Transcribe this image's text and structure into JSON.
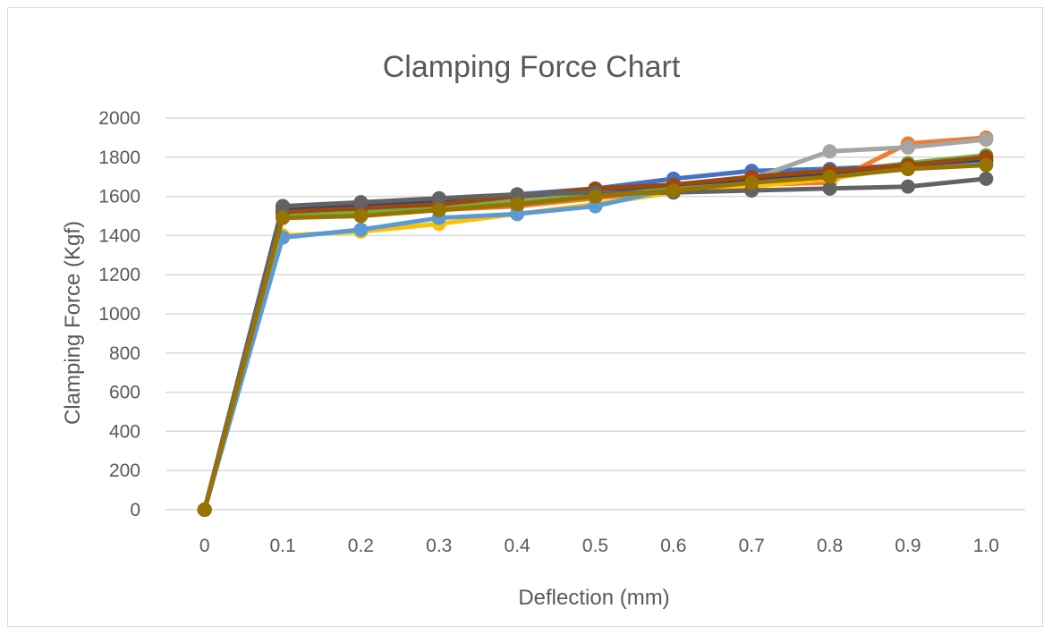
{
  "chart_data": {
    "type": "line",
    "title": "Clamping Force Chart",
    "xlabel": "Deflection (mm)",
    "ylabel": "Clamping Force (Kgf)",
    "x": [
      "0",
      "0.1",
      "0.2",
      "0.3",
      "0.4",
      "0.5",
      "0.6",
      "0.7",
      "0.8",
      "0.9",
      "1.0"
    ],
    "ylim": [
      0,
      2000
    ],
    "yticks": [
      0,
      200,
      400,
      600,
      800,
      1000,
      1200,
      1400,
      1600,
      1800,
      2000
    ],
    "grid": true,
    "legend": "none",
    "series": [
      {
        "color": "#4472c4",
        "values": [
          0,
          1550,
          1560,
          1580,
          1610,
          1640,
          1690,
          1730,
          1740,
          1760,
          1780
        ]
      },
      {
        "color": "#ed7d31",
        "values": [
          0,
          1500,
          1510,
          1530,
          1550,
          1590,
          1630,
          1660,
          1670,
          1870,
          1900
        ]
      },
      {
        "color": "#a5a5a5",
        "values": [
          0,
          1530,
          1550,
          1570,
          1590,
          1620,
          1650,
          1690,
          1830,
          1850,
          1890
        ]
      },
      {
        "color": "#ffc000",
        "values": [
          0,
          1400,
          1420,
          1460,
          1510,
          1560,
          1620,
          1650,
          1690,
          1750,
          1770
        ]
      },
      {
        "color": "#5b9bd5",
        "values": [
          0,
          1390,
          1430,
          1490,
          1510,
          1550,
          1640,
          1670,
          1700,
          1740,
          1780
        ]
      },
      {
        "color": "#70ad47",
        "values": [
          0,
          1510,
          1520,
          1550,
          1570,
          1610,
          1640,
          1680,
          1720,
          1770,
          1810
        ]
      },
      {
        "color": "#264478",
        "values": [
          0,
          1540,
          1560,
          1570,
          1600,
          1630,
          1660,
          1690,
          1720,
          1760,
          1790
        ]
      },
      {
        "color": "#9e480e",
        "values": [
          0,
          1520,
          1540,
          1560,
          1600,
          1640,
          1660,
          1700,
          1730,
          1760,
          1800
        ]
      },
      {
        "color": "#636363",
        "values": [
          0,
          1550,
          1570,
          1590,
          1610,
          1620,
          1620,
          1630,
          1640,
          1650,
          1690
        ]
      },
      {
        "color": "#997300",
        "values": [
          0,
          1490,
          1500,
          1530,
          1560,
          1600,
          1630,
          1670,
          1700,
          1740,
          1760
        ]
      }
    ]
  }
}
